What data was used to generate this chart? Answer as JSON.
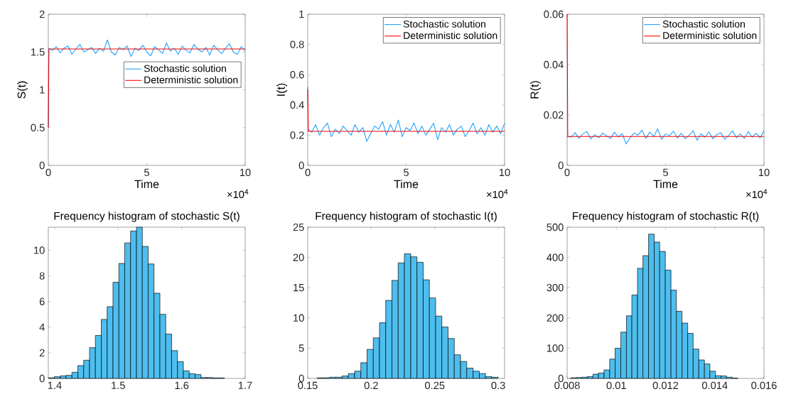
{
  "chart_data": [
    {
      "type": "line",
      "xlabel": "Time",
      "ylabel": "S(t)",
      "xlim": [
        0,
        10
      ],
      "ylim": [
        0,
        2
      ],
      "xticks": [
        0,
        5,
        10
      ],
      "yticks": [
        0,
        0.5,
        1,
        1.5,
        2
      ],
      "legend": "right",
      "annotations": [
        "×10$^{4}$"
      ],
      "series": [
        {
          "name": "Stochastic solution",
          "color": "#1aa0ff",
          "x": [
            0,
            0.02,
            0.2,
            0.4,
            0.6,
            0.8,
            1,
            1.2,
            1.4,
            1.6,
            1.8,
            2,
            2.2,
            2.4,
            2.6,
            2.8,
            3,
            3.2,
            3.4,
            3.6,
            3.8,
            4,
            4.2,
            4.4,
            4.6,
            4.8,
            5,
            5.2,
            5.4,
            5.6,
            5.8,
            6,
            6.2,
            6.4,
            6.6,
            6.8,
            7,
            7.2,
            7.4,
            7.6,
            7.8,
            8,
            8.2,
            8.4,
            8.6,
            8.8,
            9,
            9.2,
            9.4,
            9.6,
            9.8,
            10
          ],
          "values": [
            0.5,
            1.55,
            1.52,
            1.57,
            1.49,
            1.55,
            1.58,
            1.47,
            1.54,
            1.6,
            1.5,
            1.53,
            1.56,
            1.48,
            1.55,
            1.51,
            1.66,
            1.5,
            1.46,
            1.56,
            1.53,
            1.58,
            1.44,
            1.55,
            1.52,
            1.59,
            1.5,
            1.45,
            1.57,
            1.53,
            1.48,
            1.62,
            1.51,
            1.55,
            1.47,
            1.58,
            1.52,
            1.49,
            1.6,
            1.54,
            1.5,
            1.56,
            1.46,
            1.59,
            1.53,
            1.48,
            1.55,
            1.61,
            1.5,
            1.47,
            1.57,
            1.52
          ]
        },
        {
          "name": "Deterministic solution",
          "color": "#ff0000",
          "x": [
            0,
            0.03,
            10
          ],
          "values": [
            0.5,
            1.54,
            1.54
          ]
        }
      ]
    },
    {
      "type": "line",
      "xlabel": "Time",
      "ylabel": "I(t)",
      "xlim": [
        0,
        10
      ],
      "ylim": [
        0,
        1
      ],
      "xticks": [
        0,
        5,
        10
      ],
      "yticks": [
        0,
        0.2,
        0.4,
        0.6,
        0.8,
        1
      ],
      "legend": "top right",
      "annotations": [
        "×10$^{4}$"
      ],
      "series": [
        {
          "name": "Stochastic solution",
          "color": "#1aa0ff",
          "x": [
            0,
            0.02,
            0.2,
            0.4,
            0.6,
            0.8,
            1,
            1.2,
            1.4,
            1.6,
            1.8,
            2,
            2.2,
            2.4,
            2.6,
            2.8,
            3,
            3.2,
            3.4,
            3.6,
            3.8,
            4,
            4.2,
            4.4,
            4.6,
            4.8,
            5,
            5.2,
            5.4,
            5.6,
            5.8,
            6,
            6.2,
            6.4,
            6.6,
            6.8,
            7,
            7.2,
            7.4,
            7.6,
            7.8,
            8,
            8.2,
            8.4,
            8.6,
            8.8,
            9,
            9.2,
            9.4,
            9.6,
            9.8,
            10
          ],
          "values": [
            0.52,
            0.24,
            0.22,
            0.27,
            0.2,
            0.25,
            0.28,
            0.19,
            0.24,
            0.21,
            0.26,
            0.23,
            0.2,
            0.27,
            0.22,
            0.25,
            0.16,
            0.21,
            0.26,
            0.24,
            0.29,
            0.2,
            0.27,
            0.22,
            0.3,
            0.19,
            0.25,
            0.23,
            0.28,
            0.21,
            0.26,
            0.2,
            0.24,
            0.28,
            0.17,
            0.25,
            0.22,
            0.27,
            0.2,
            0.24,
            0.26,
            0.19,
            0.23,
            0.28,
            0.21,
            0.25,
            0.2,
            0.27,
            0.22,
            0.26,
            0.21,
            0.28
          ]
        },
        {
          "name": "Deterministic solution",
          "color": "#ff0000",
          "x": [
            0,
            0.03,
            10
          ],
          "values": [
            0.5,
            0.225,
            0.225
          ]
        }
      ]
    },
    {
      "type": "line",
      "xlabel": "Time",
      "ylabel": "R(t)",
      "xlim": [
        0,
        10
      ],
      "ylim": [
        0,
        0.06
      ],
      "xticks": [
        0,
        5,
        10
      ],
      "yticks": [
        0,
        0.02,
        0.04,
        0.06
      ],
      "legend": "top right",
      "annotations": [
        "×10$^{4}$"
      ],
      "series": [
        {
          "name": "Stochastic solution",
          "color": "#1aa0ff",
          "x": [
            0,
            0.02,
            0.2,
            0.4,
            0.6,
            0.8,
            1,
            1.2,
            1.4,
            1.6,
            1.8,
            2,
            2.2,
            2.4,
            2.6,
            2.8,
            3,
            3.2,
            3.4,
            3.6,
            3.8,
            4,
            4.2,
            4.4,
            4.6,
            4.8,
            5,
            5.2,
            5.4,
            5.6,
            5.8,
            6,
            6.2,
            6.4,
            6.6,
            6.8,
            7,
            7.2,
            7.4,
            7.6,
            7.8,
            8,
            8.2,
            8.4,
            8.6,
            8.8,
            9,
            9.2,
            9.4,
            9.6,
            9.8,
            10
          ],
          "values": [
            0.011,
            0.0115,
            0.0112,
            0.013,
            0.0108,
            0.0125,
            0.0135,
            0.0105,
            0.0122,
            0.011,
            0.0128,
            0.0118,
            0.0107,
            0.0132,
            0.0113,
            0.0126,
            0.0085,
            0.011,
            0.0128,
            0.012,
            0.014,
            0.0108,
            0.0132,
            0.0115,
            0.0145,
            0.0104,
            0.0125,
            0.0118,
            0.0136,
            0.0109,
            0.0128,
            0.0106,
            0.012,
            0.0138,
            0.01,
            0.0126,
            0.0112,
            0.0133,
            0.0106,
            0.0122,
            0.013,
            0.0104,
            0.0118,
            0.0137,
            0.011,
            0.0125,
            0.0107,
            0.0134,
            0.0112,
            0.0128,
            0.0109,
            0.0138
          ]
        },
        {
          "name": "Deterministic solution",
          "color": "#ff0000",
          "x": [
            0,
            0.03,
            10
          ],
          "values": [
            0.06,
            0.0115,
            0.0115
          ]
        }
      ]
    },
    {
      "type": "histogram",
      "title": "Frequency histogram of stochastic S(t)",
      "color": "#4dbeee",
      "xlim": [
        1.39,
        1.7
      ],
      "ylim": [
        0,
        11.8
      ],
      "xticks": [
        1.4,
        1.5,
        1.6,
        1.7
      ],
      "yticks": [
        0,
        2,
        4,
        6,
        8,
        10
      ],
      "bins": [
        1.3903,
        1.3995,
        1.4088,
        1.418,
        1.4272,
        1.4365,
        1.4457,
        1.4549,
        1.4641,
        1.4734,
        1.4826,
        1.4918,
        1.5011,
        1.5103,
        1.5195,
        1.5288,
        1.538,
        1.5472,
        1.5564,
        1.5657,
        1.5749,
        1.5841,
        1.5934,
        1.6026,
        1.6118,
        1.6211,
        1.6303,
        1.6395,
        1.6487,
        1.658,
        1.6672
      ],
      "values": [
        0.05,
        0.13,
        0.2,
        0.24,
        0.48,
        1.0,
        1.42,
        2.4,
        3.35,
        4.6,
        5.6,
        7.5,
        8.97,
        10.57,
        11.5,
        11.8,
        10.3,
        8.93,
        6.65,
        5.0,
        3.46,
        2.17,
        1.31,
        0.59,
        0.37,
        0.3,
        0.07,
        0.07,
        0.04,
        0.04
      ]
    },
    {
      "type": "histogram",
      "title": "Frequency histogram of stochastic I(t)",
      "color": "#4dbeee",
      "xlim": [
        0.15,
        0.305
      ],
      "ylim": [
        0,
        25
      ],
      "xticks": [
        0.15,
        0.2,
        0.25,
        0.3
      ],
      "yticks": [
        0,
        5,
        10,
        15,
        20,
        25
      ],
      "bins": [
        0.1574,
        0.1623,
        0.1672,
        0.1721,
        0.177,
        0.182,
        0.1869,
        0.1918,
        0.1967,
        0.2016,
        0.2065,
        0.2114,
        0.2163,
        0.2212,
        0.2261,
        0.2311,
        0.236,
        0.2409,
        0.2458,
        0.2507,
        0.2556,
        0.2605,
        0.2654,
        0.2703,
        0.2752,
        0.2802,
        0.2851,
        0.29,
        0.2949,
        0.2998
      ],
      "values": [
        0.1,
        0.1,
        0.2,
        0.2,
        0.4,
        0.8,
        1.2,
        2.6,
        4.8,
        6.7,
        9.2,
        12.9,
        16.2,
        19.1,
        20.6,
        20.1,
        19.2,
        16.3,
        13.3,
        10.3,
        8.5,
        6.6,
        3.9,
        2.8,
        1.7,
        1.2,
        0.8,
        0.3,
        0.2
      ]
    },
    {
      "type": "histogram",
      "title": "Frequency histogram of stochastic R(t)",
      "color": "#4dbeee",
      "xlim": [
        0.008,
        0.016
      ],
      "ylim": [
        0,
        500
      ],
      "xticks": [
        0.008,
        0.01,
        0.012,
        0.014,
        0.016
      ],
      "yticks": [
        0,
        100,
        200,
        300,
        400,
        500
      ],
      "bins": [
        0.00814,
        0.00837,
        0.0086,
        0.00882,
        0.00905,
        0.00927,
        0.0095,
        0.00973,
        0.00995,
        0.01018,
        0.01041,
        0.01063,
        0.01086,
        0.01108,
        0.01131,
        0.01154,
        0.01176,
        0.01199,
        0.01222,
        0.01244,
        0.01267,
        0.0129,
        0.01312,
        0.01335,
        0.01358,
        0.0138,
        0.01403,
        0.01425,
        0.01448,
        0.01471,
        0.01494
      ],
      "values": [
        2,
        3,
        4,
        6,
        14,
        18,
        28,
        64,
        100,
        153,
        207,
        276,
        364,
        406,
        477,
        451,
        420,
        358,
        292,
        222,
        183,
        149,
        97,
        61,
        48,
        24,
        9,
        8,
        4,
        1
      ]
    }
  ]
}
